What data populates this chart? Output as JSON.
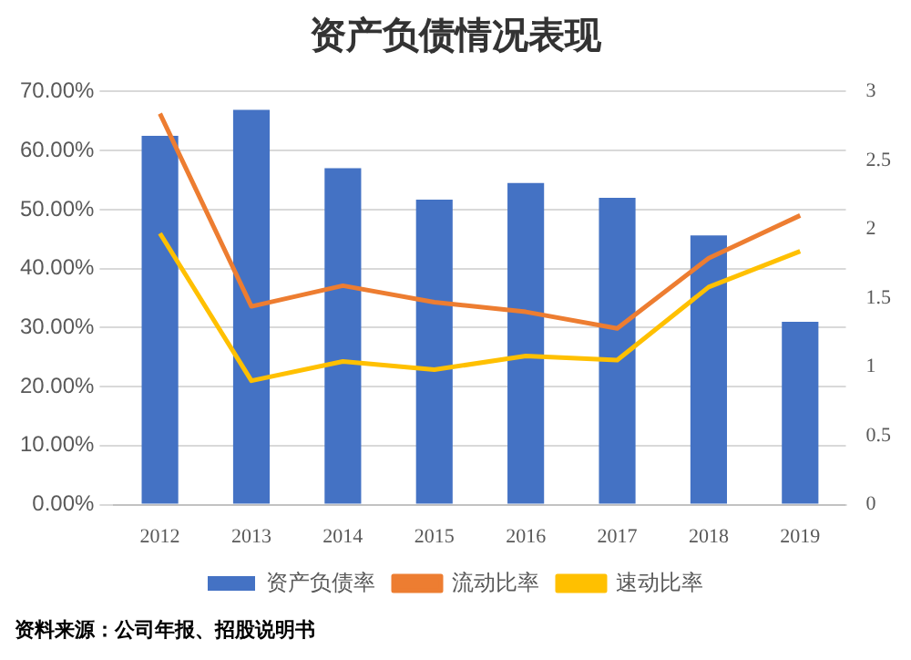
{
  "chart_data": {
    "type": "bar",
    "title": "资产负债情况表现",
    "categories": [
      "2012",
      "2013",
      "2014",
      "2015",
      "2016",
      "2017",
      "2018",
      "2019"
    ],
    "series": [
      {
        "name": "资产负债率",
        "color": "#4472c4",
        "values": [
          62.5,
          66.9,
          57.0,
          51.7,
          54.5,
          52.0,
          45.6,
          31.0
        ]
      },
      {
        "name": "流动比率",
        "type": "line",
        "axis": "y2",
        "color": "#ed7d31",
        "values": [
          2.84,
          1.44,
          1.59,
          1.47,
          1.4,
          1.28,
          1.79,
          2.1
        ]
      },
      {
        "name": "速动比率",
        "type": "line",
        "axis": "y2",
        "color": "#ffc000",
        "values": [
          1.97,
          0.9,
          1.04,
          0.98,
          1.08,
          1.05,
          1.58,
          1.84
        ]
      }
    ],
    "ylim": [
      0,
      70
    ],
    "yticks": [
      {
        "value": 0,
        "label": "0.00%"
      },
      {
        "value": 10,
        "label": "10.00%"
      },
      {
        "value": 20,
        "label": "20.00%"
      },
      {
        "value": 30,
        "label": "30.00%"
      },
      {
        "value": 40,
        "label": "40.00%"
      },
      {
        "value": 50,
        "label": "50.00%"
      },
      {
        "value": 60,
        "label": "60.00%"
      },
      {
        "value": 70,
        "label": "70.00%"
      }
    ],
    "y2lim": [
      0,
      3
    ],
    "y2ticks": [
      0,
      0.5,
      1,
      1.5,
      2,
      2.5,
      3
    ],
    "grid": "y",
    "legend": "bottom",
    "marker": "none",
    "annotations": [
      "资料来源：公司年报、招股说明书"
    ]
  }
}
